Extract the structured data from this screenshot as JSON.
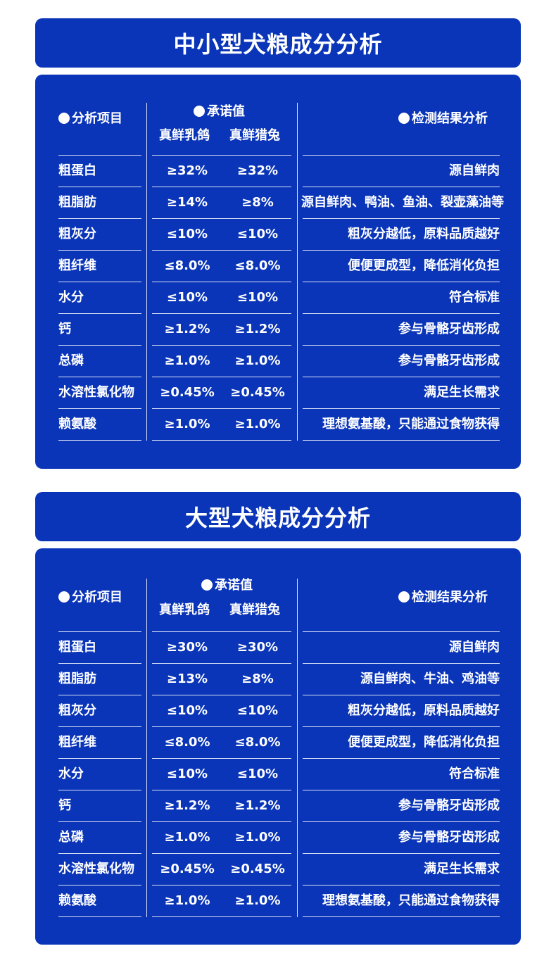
{
  "sections": [
    {
      "title": "中小型犬粮成分分析",
      "headers": {
        "item": "分析项目",
        "promise": "承诺值",
        "flavor1": "真鲜乳鸽",
        "flavor2": "真鲜猎兔",
        "result": "检测结果分析"
      },
      "rows": [
        {
          "name": "粗蛋白",
          "v1": "≥32%",
          "v2": "≥32%",
          "result": "源自鲜肉"
        },
        {
          "name": "粗脂肪",
          "v1": "≥14%",
          "v2": "≥8%",
          "result": "源自鲜肉、鸭油、鱼油、裂壶藻油等"
        },
        {
          "name": "粗灰分",
          "v1": "≤10%",
          "v2": "≤10%",
          "result": "粗灰分越低，原料品质越好"
        },
        {
          "name": "粗纤维",
          "v1": "≤8.0%",
          "v2": "≤8.0%",
          "result": "便便更成型，降低消化负担"
        },
        {
          "name": "水分",
          "v1": "≤10%",
          "v2": "≤10%",
          "result": "符合标准"
        },
        {
          "name": "钙",
          "v1": "≥1.2%",
          "v2": "≥1.2%",
          "result": "参与骨骼牙齿形成"
        },
        {
          "name": "总磷",
          "v1": "≥1.0%",
          "v2": "≥1.0%",
          "result": "参与骨骼牙齿形成"
        },
        {
          "name": "水溶性氯化物",
          "v1": "≥0.45%",
          "v2": "≥0.45%",
          "result": "满足生长需求"
        },
        {
          "name": "赖氨酸",
          "v1": "≥1.0%",
          "v2": "≥1.0%",
          "result": "理想氨基酸，只能通过食物获得"
        }
      ]
    },
    {
      "title": "大型犬粮成分分析",
      "headers": {
        "item": "分析项目",
        "promise": "承诺值",
        "flavor1": "真鲜乳鸽",
        "flavor2": "真鲜猎兔",
        "result": "检测结果分析"
      },
      "rows": [
        {
          "name": "粗蛋白",
          "v1": "≥30%",
          "v2": "≥30%",
          "result": "源自鲜肉"
        },
        {
          "name": "粗脂肪",
          "v1": "≥13%",
          "v2": "≥8%",
          "result": "源自鲜肉、牛油、鸡油等"
        },
        {
          "name": "粗灰分",
          "v1": "≤10%",
          "v2": "≤10%",
          "result": "粗灰分越低，原料品质越好"
        },
        {
          "name": "粗纤维",
          "v1": "≤8.0%",
          "v2": "≤8.0%",
          "result": "便便更成型，降低消化负担"
        },
        {
          "name": "水分",
          "v1": "≤10%",
          "v2": "≤10%",
          "result": "符合标准"
        },
        {
          "name": "钙",
          "v1": "≥1.2%",
          "v2": "≥1.2%",
          "result": "参与骨骼牙齿形成"
        },
        {
          "name": "总磷",
          "v1": "≥1.0%",
          "v2": "≥1.0%",
          "result": "参与骨骼牙齿形成"
        },
        {
          "name": "水溶性氯化物",
          "v1": "≥0.45%",
          "v2": "≥0.45%",
          "result": "满足生长需求"
        },
        {
          "name": "赖氨酸",
          "v1": "≥1.0%",
          "v2": "≥1.0%",
          "result": "理想氨基酸，只能通过食物获得"
        }
      ]
    }
  ]
}
